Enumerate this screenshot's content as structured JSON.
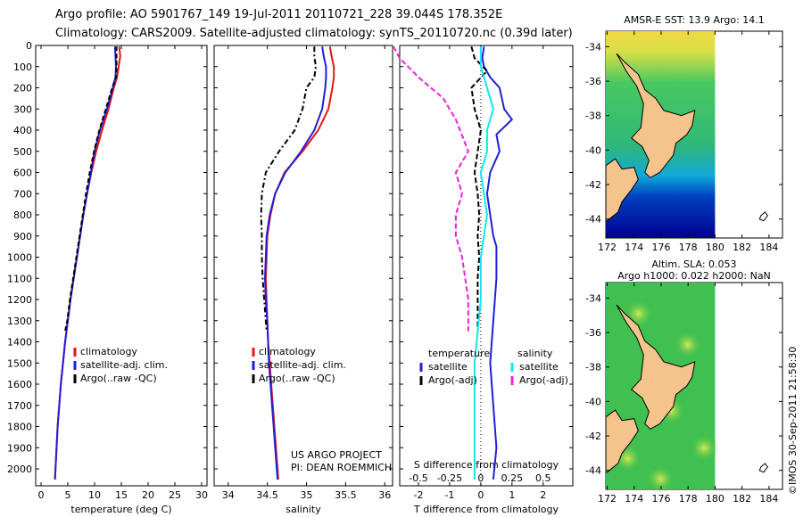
{
  "header": {
    "line1": "Argo profile: AO 5901767_149 19-Jul-2011 20110721_228 39.044S 178.352E",
    "line2": "Climatology: CARS2009. Satellite-adjusted climatology: synTS_20110720.nc (0.39d later)"
  },
  "colors": {
    "climatology": "#e8141a",
    "satellite": "#1f1fd8",
    "argo": "#000000",
    "satellite_s": "#10e8f0",
    "argo_s": "#f020d8",
    "land": "#f5c38c"
  },
  "chart_data": [
    {
      "type": "line",
      "id": "temperature",
      "xlabel": "temperature (deg C)",
      "xlim": [
        -1,
        31
      ],
      "xticks": [
        0,
        5,
        10,
        15,
        20,
        25,
        30
      ],
      "ylim": [
        0,
        2080
      ],
      "yticks": [
        0,
        100,
        200,
        300,
        400,
        500,
        600,
        700,
        800,
        900,
        1000,
        1100,
        1200,
        1300,
        1400,
        1500,
        1600,
        1700,
        1800,
        1900,
        2000
      ],
      "legend": [
        "climatology",
        "satellite-adj. clim.",
        "Argo(..raw -QC)"
      ],
      "series": [
        {
          "name": "climatology",
          "color": "climatology",
          "dash": "",
          "points": [
            [
              14.6,
              5
            ],
            [
              14.8,
              50
            ],
            [
              14.5,
              100
            ],
            [
              14.2,
              150
            ],
            [
              13.6,
              200
            ],
            [
              12.6,
              300
            ],
            [
              11.4,
              400
            ],
            [
              10.3,
              500
            ],
            [
              9.4,
              600
            ],
            [
              8.6,
              700
            ],
            [
              7.9,
              800
            ],
            [
              7.3,
              900
            ],
            [
              6.7,
              1000
            ],
            [
              6.1,
              1100
            ],
            [
              5.5,
              1200
            ],
            [
              5.0,
              1300
            ],
            [
              4.5,
              1400
            ],
            [
              4.1,
              1500
            ],
            [
              3.7,
              1600
            ],
            [
              3.4,
              1700
            ],
            [
              3.1,
              1800
            ],
            [
              2.9,
              1900
            ],
            [
              2.7,
              2000
            ],
            [
              2.6,
              2050
            ]
          ]
        },
        {
          "name": "satellite-adj. clim.",
          "color": "satellite",
          "dash": "",
          "points": [
            [
              13.8,
              5
            ],
            [
              13.9,
              50
            ],
            [
              14.0,
              100
            ],
            [
              13.9,
              150
            ],
            [
              13.4,
              200
            ],
            [
              12.3,
              300
            ],
            [
              11.0,
              400
            ],
            [
              10.0,
              500
            ],
            [
              9.3,
              600
            ],
            [
              8.6,
              700
            ],
            [
              7.9,
              800
            ],
            [
              7.3,
              900
            ],
            [
              6.7,
              1000
            ],
            [
              6.1,
              1100
            ],
            [
              5.5,
              1200
            ],
            [
              5.0,
              1300
            ],
            [
              4.5,
              1400
            ],
            [
              4.1,
              1500
            ],
            [
              3.7,
              1600
            ],
            [
              3.4,
              1700
            ],
            [
              3.1,
              1800
            ],
            [
              2.9,
              1900
            ],
            [
              2.7,
              2000
            ],
            [
              2.6,
              2050
            ]
          ]
        },
        {
          "name": "Argo(..raw -QC)",
          "color": "argo",
          "dash": "5,3",
          "points": [
            [
              14.1,
              5
            ],
            [
              14.1,
              50
            ],
            [
              14.1,
              100
            ],
            [
              14.0,
              150
            ],
            [
              13.3,
              200
            ],
            [
              12.1,
              300
            ],
            [
              10.9,
              400
            ],
            [
              9.9,
              500
            ],
            [
              9.1,
              600
            ],
            [
              8.4,
              700
            ],
            [
              7.8,
              800
            ],
            [
              7.2,
              900
            ],
            [
              6.6,
              1000
            ],
            [
              6.0,
              1100
            ],
            [
              5.4,
              1200
            ],
            [
              4.9,
              1300
            ],
            [
              4.5,
              1350
            ]
          ]
        }
      ]
    },
    {
      "type": "line",
      "id": "salinity",
      "xlabel": "salinity",
      "xlim": [
        33.82,
        36.1
      ],
      "xticks": [
        34,
        34.5,
        35,
        35.5,
        36
      ],
      "ylim": [
        0,
        2080
      ],
      "legend": [
        "climatology",
        "satellite-adj. clim.",
        "Argo(..raw -QC)"
      ],
      "annotation": [
        "US ARGO PROJECT",
        "PI: DEAN ROEMMICH"
      ],
      "series": [
        {
          "name": "climatology",
          "color": "climatology",
          "dash": "",
          "points": [
            [
              35.3,
              5
            ],
            [
              35.32,
              50
            ],
            [
              35.35,
              100
            ],
            [
              35.35,
              150
            ],
            [
              35.33,
              200
            ],
            [
              35.28,
              300
            ],
            [
              35.15,
              400
            ],
            [
              34.95,
              500
            ],
            [
              34.72,
              600
            ],
            [
              34.6,
              700
            ],
            [
              34.54,
              800
            ],
            [
              34.5,
              900
            ],
            [
              34.49,
              1000
            ],
            [
              34.48,
              1100
            ],
            [
              34.49,
              1200
            ],
            [
              34.5,
              1300
            ],
            [
              34.51,
              1400
            ],
            [
              34.53,
              1500
            ],
            [
              34.55,
              1600
            ],
            [
              34.57,
              1700
            ],
            [
              34.59,
              1800
            ],
            [
              34.61,
              1900
            ],
            [
              34.63,
              2000
            ],
            [
              34.64,
              2050
            ]
          ]
        },
        {
          "name": "satellite-adj. clim.",
          "color": "satellite",
          "dash": "",
          "points": [
            [
              35.2,
              5
            ],
            [
              35.22,
              50
            ],
            [
              35.25,
              100
            ],
            [
              35.25,
              150
            ],
            [
              35.24,
              200
            ],
            [
              35.2,
              300
            ],
            [
              35.1,
              400
            ],
            [
              34.93,
              500
            ],
            [
              34.73,
              600
            ],
            [
              34.6,
              700
            ],
            [
              34.53,
              800
            ],
            [
              34.49,
              900
            ],
            [
              34.48,
              1000
            ],
            [
              34.47,
              1100
            ],
            [
              34.48,
              1200
            ],
            [
              34.5,
              1300
            ],
            [
              34.51,
              1400
            ],
            [
              34.52,
              1500
            ],
            [
              34.54,
              1600
            ],
            [
              34.56,
              1700
            ],
            [
              34.58,
              1800
            ],
            [
              34.6,
              1900
            ],
            [
              34.62,
              2000
            ],
            [
              34.63,
              2050
            ]
          ]
        },
        {
          "name": "Argo(..raw -QC)",
          "color": "argo",
          "dash": "6,3,2,3",
          "points": [
            [
              35.1,
              5
            ],
            [
              35.1,
              50
            ],
            [
              35.12,
              100
            ],
            [
              35.1,
              150
            ],
            [
              35.0,
              200
            ],
            [
              34.95,
              300
            ],
            [
              34.85,
              400
            ],
            [
              34.65,
              500
            ],
            [
              34.48,
              600
            ],
            [
              34.43,
              700
            ],
            [
              34.42,
              800
            ],
            [
              34.43,
              900
            ],
            [
              34.43,
              1000
            ],
            [
              34.44,
              1100
            ],
            [
              34.46,
              1200
            ],
            [
              34.48,
              1300
            ],
            [
              34.49,
              1350
            ]
          ]
        }
      ]
    },
    {
      "type": "line",
      "id": "differences",
      "xlabel": "T difference from climatology",
      "xlabel_top": "S difference from climatology",
      "xlim": [
        -2.6,
        2.95
      ],
      "xticks": [
        -2,
        -1,
        0,
        1,
        2
      ],
      "xticks_s": [
        -0.5,
        -0.25,
        0,
        0.25,
        0.5
      ],
      "ylim": [
        0,
        2080
      ],
      "legend_t": {
        "title": "temperature",
        "items": [
          "satellite",
          "Argo(-adj)"
        ]
      },
      "legend_s": {
        "title": "salinity",
        "items": [
          "satellite",
          "Argo(-adj)"
        ]
      },
      "series": [
        {
          "name": "T satellite",
          "color": "satellite",
          "dash": "",
          "points": [
            [
              0.1,
              5
            ],
            [
              0.05,
              60
            ],
            [
              0.1,
              100
            ],
            [
              0.3,
              150
            ],
            [
              0.6,
              200
            ],
            [
              0.75,
              300
            ],
            [
              1.0,
              350
            ],
            [
              0.5,
              420
            ],
            [
              0.6,
              500
            ],
            [
              0.3,
              600
            ],
            [
              0.2,
              700
            ],
            [
              0.3,
              800
            ],
            [
              0.4,
              900
            ],
            [
              0.5,
              950
            ],
            [
              0.5,
              1100
            ],
            [
              0.4,
              1300
            ],
            [
              0.3,
              1500
            ],
            [
              0.4,
              1700
            ],
            [
              0.5,
              1900
            ],
            [
              0.4,
              2050
            ]
          ]
        },
        {
          "name": "T Argo(-adj)",
          "color": "argo",
          "dash": "6,3",
          "points": [
            [
              -0.3,
              5
            ],
            [
              -0.2,
              60
            ],
            [
              0.2,
              120
            ],
            [
              -0.3,
              200
            ],
            [
              -0.2,
              300
            ],
            [
              0.0,
              400
            ],
            [
              -0.1,
              500
            ],
            [
              -0.2,
              600
            ],
            [
              -0.1,
              700
            ],
            [
              -0.05,
              800
            ],
            [
              -0.1,
              900
            ],
            [
              -0.05,
              1000
            ],
            [
              -0.1,
              1100
            ],
            [
              -0.1,
              1200
            ],
            [
              -0.1,
              1300
            ],
            [
              -0.1,
              1350
            ]
          ]
        },
        {
          "name": "S satellite",
          "color": "satellite_s",
          "dash": "",
          "points": [
            [
              0.0,
              5
            ],
            [
              0.0,
              100
            ],
            [
              0.05,
              200
            ],
            [
              0.1,
              300
            ],
            [
              0.05,
              400
            ],
            [
              0.05,
              500
            ],
            [
              0.0,
              600
            ],
            [
              0.05,
              800
            ],
            [
              0.0,
              1000
            ],
            [
              0.0,
              1200
            ],
            [
              -0.05,
              1500
            ],
            [
              -0.05,
              1800
            ],
            [
              -0.05,
              2050
            ]
          ]
        },
        {
          "name": "S Argo(-adj)",
          "color": "argo_s",
          "dash": "6,3",
          "points": [
            [
              -0.7,
              5
            ],
            [
              -0.65,
              60
            ],
            [
              -0.5,
              150
            ],
            [
              -0.3,
              250
            ],
            [
              -0.2,
              350
            ],
            [
              -0.1,
              500
            ],
            [
              -0.2,
              600
            ],
            [
              -0.15,
              700
            ],
            [
              -0.2,
              800
            ],
            [
              -0.2,
              900
            ],
            [
              -0.15,
              1000
            ],
            [
              -0.1,
              1200
            ],
            [
              -0.1,
              1350
            ]
          ]
        }
      ]
    }
  ],
  "maps": [
    {
      "id": "sst",
      "title": "AMSR-E SST: 13.9 Argo: 14.1",
      "title2": "",
      "lats": [
        -34,
        -36,
        -38,
        -40,
        -42,
        -44
      ],
      "lons": [
        172,
        174,
        176,
        178,
        180,
        182,
        184
      ]
    },
    {
      "id": "sla",
      "title": "Altim. SLA: 0.053",
      "title2": "Argo h1000: 0.022 h2000: NaN",
      "lats": [
        -34,
        -36,
        -38,
        -40,
        -42,
        -44
      ],
      "lons": [
        172,
        174,
        176,
        178,
        180,
        182,
        184
      ]
    }
  ],
  "credit": "©IMOS 30-Sep-2011 21:58:30"
}
